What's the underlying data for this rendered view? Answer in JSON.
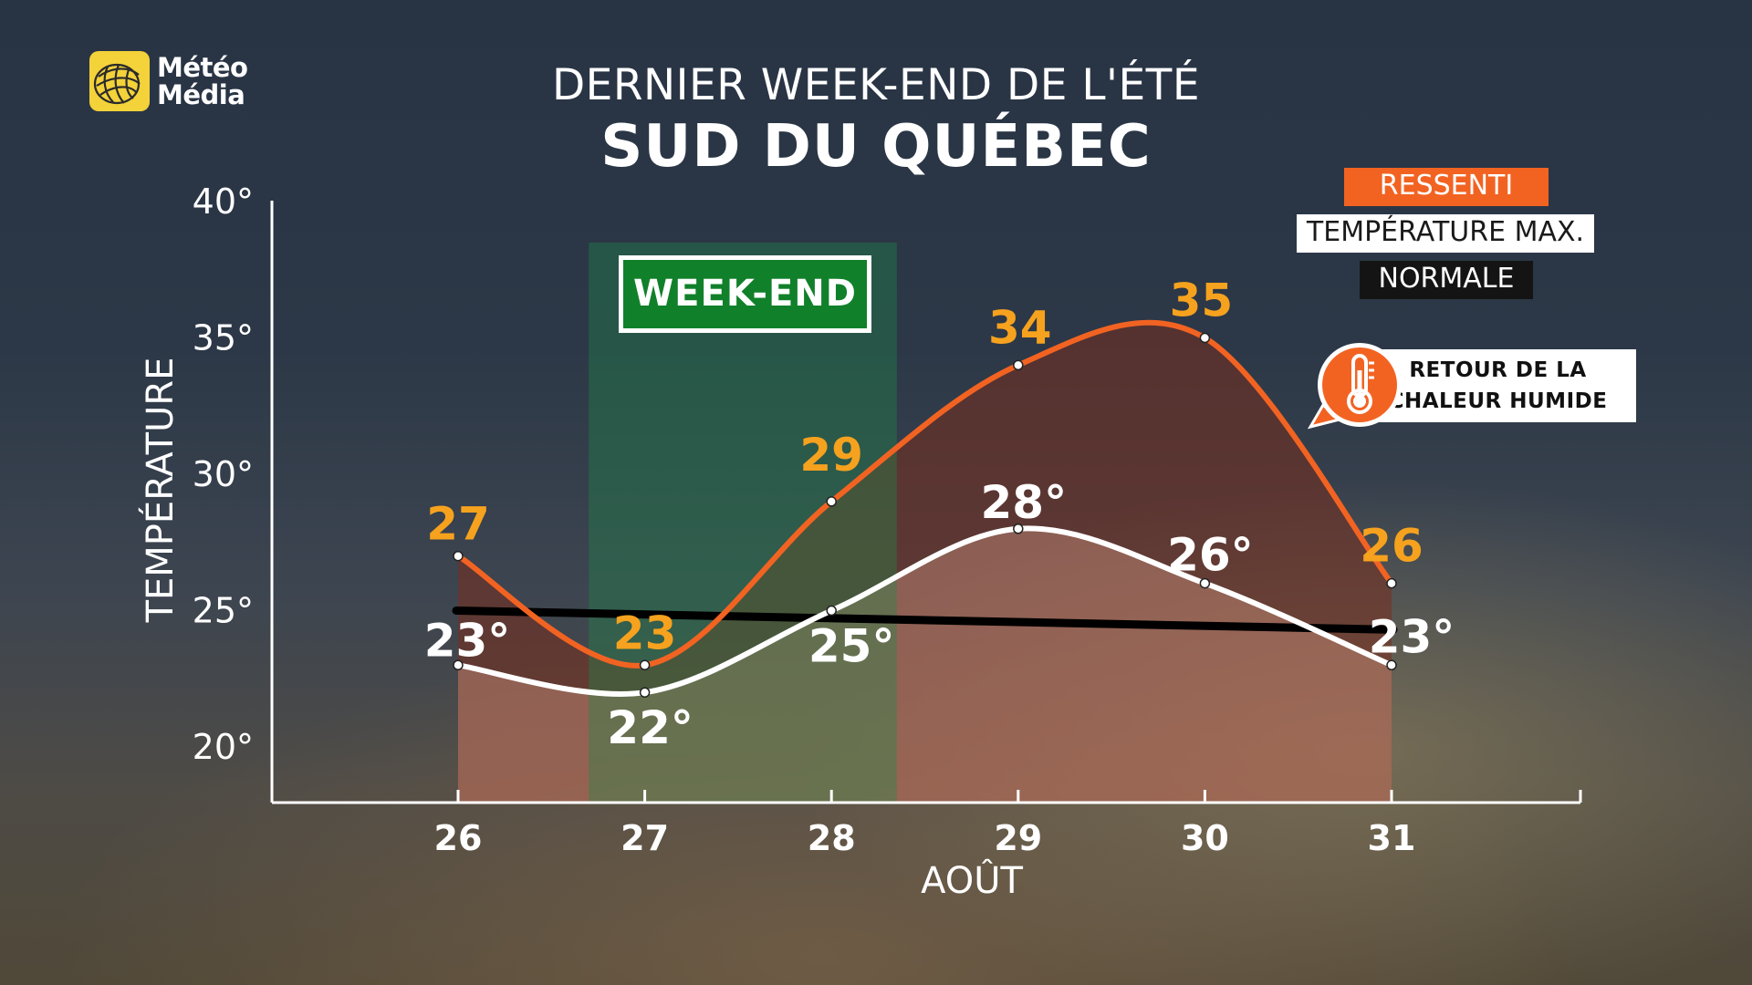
{
  "brand": {
    "line1": "Météo",
    "line2": "Média",
    "color": "#f3d23a"
  },
  "title": {
    "line1": "DERNIER WEEK-END DE L'ÉTÉ",
    "line2": "SUD DU QUÉBEC"
  },
  "legend": {
    "ressenti": "RESSENTI",
    "max": "TEMPÉRATURE MAX.",
    "normale": "NORMALE"
  },
  "weekend_label": "WEEK-END",
  "alert": {
    "line1": "RETOUR DE LA",
    "line2": "CHALEUR HUMIDE",
    "icon": "thermometer-icon"
  },
  "colors": {
    "ressenti": "#f26322",
    "max": "#ffffff",
    "normale": "#000000",
    "weekend_band": "#1f8a4a",
    "value_label_ressenti": "#f6a21e"
  },
  "chart_data": {
    "type": "line",
    "title": "SUD DU QUÉBEC",
    "subtitle": "DERNIER WEEK-END DE L'ÉTÉ",
    "xlabel": "AOÛT",
    "ylabel": "TEMPÉRATURE",
    "categories": [
      "26",
      "27",
      "28",
      "29",
      "30",
      "31"
    ],
    "y_ticks": [
      "20°",
      "25°",
      "30°",
      "35°",
      "40°"
    ],
    "y_tick_values": [
      20,
      25,
      30,
      35,
      40
    ],
    "ylim": [
      18,
      40
    ],
    "series": [
      {
        "name": "RESSENTI",
        "values": [
          27,
          23,
          29,
          34,
          35,
          26
        ],
        "labels": [
          "27",
          "23",
          "29",
          "34",
          "35",
          "26"
        ]
      },
      {
        "name": "TEMPÉRATURE MAX.",
        "values": [
          23,
          22,
          25,
          28,
          26,
          23
        ],
        "labels": [
          "23°",
          "22°",
          "25°",
          "28°",
          "26°",
          "23°"
        ]
      },
      {
        "name": "NORMALE",
        "start": 25,
        "end": 24.3
      }
    ],
    "highlight": {
      "label": "WEEK-END",
      "from": 26.7,
      "to": 28.35
    },
    "grid": false,
    "legend_position": "top-right"
  }
}
